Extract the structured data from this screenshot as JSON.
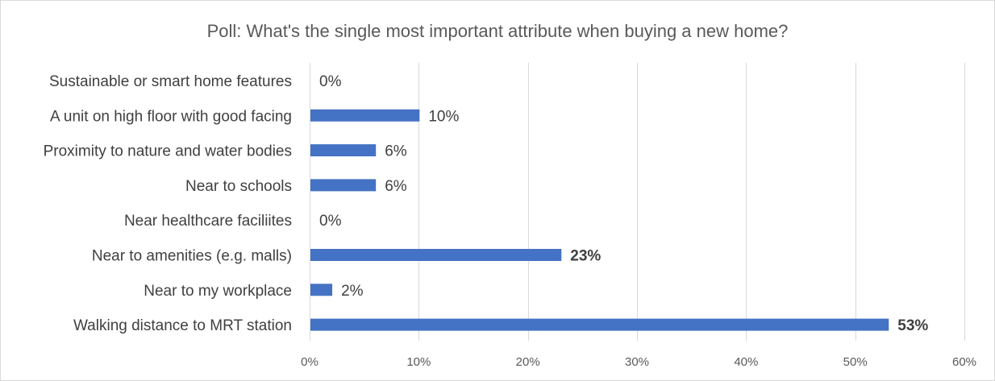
{
  "chart_data": {
    "type": "bar",
    "orientation": "horizontal",
    "title": "Poll: What's the single most important attribute when buying a new home?",
    "categories": [
      "Sustainable or smart home features",
      "A unit on high floor with good facing",
      "Proximity to nature and water bodies",
      "Near to schools",
      "Near healthcare faciliites",
      "Near to amenities (e.g. malls)",
      "Near to my workplace",
      "Walking distance to MRT station"
    ],
    "values": [
      0,
      10,
      6,
      6,
      0,
      23,
      2,
      53
    ],
    "data_labels": [
      "0%",
      "10%",
      "6%",
      "6%",
      "0%",
      "23%",
      "2%",
      "53%"
    ],
    "bold_labels": [
      false,
      false,
      false,
      false,
      false,
      true,
      false,
      true
    ],
    "xlim": [
      0,
      60
    ],
    "x_ticks": [
      0,
      10,
      20,
      30,
      40,
      50,
      60
    ],
    "x_tick_labels": [
      "0%",
      "10%",
      "20%",
      "30%",
      "40%",
      "50%",
      "60%"
    ],
    "xlabel": "",
    "ylabel": "",
    "grid": true,
    "legend": "none",
    "bar_color": "#4472c4",
    "grid_color": "#d9d9d9"
  }
}
